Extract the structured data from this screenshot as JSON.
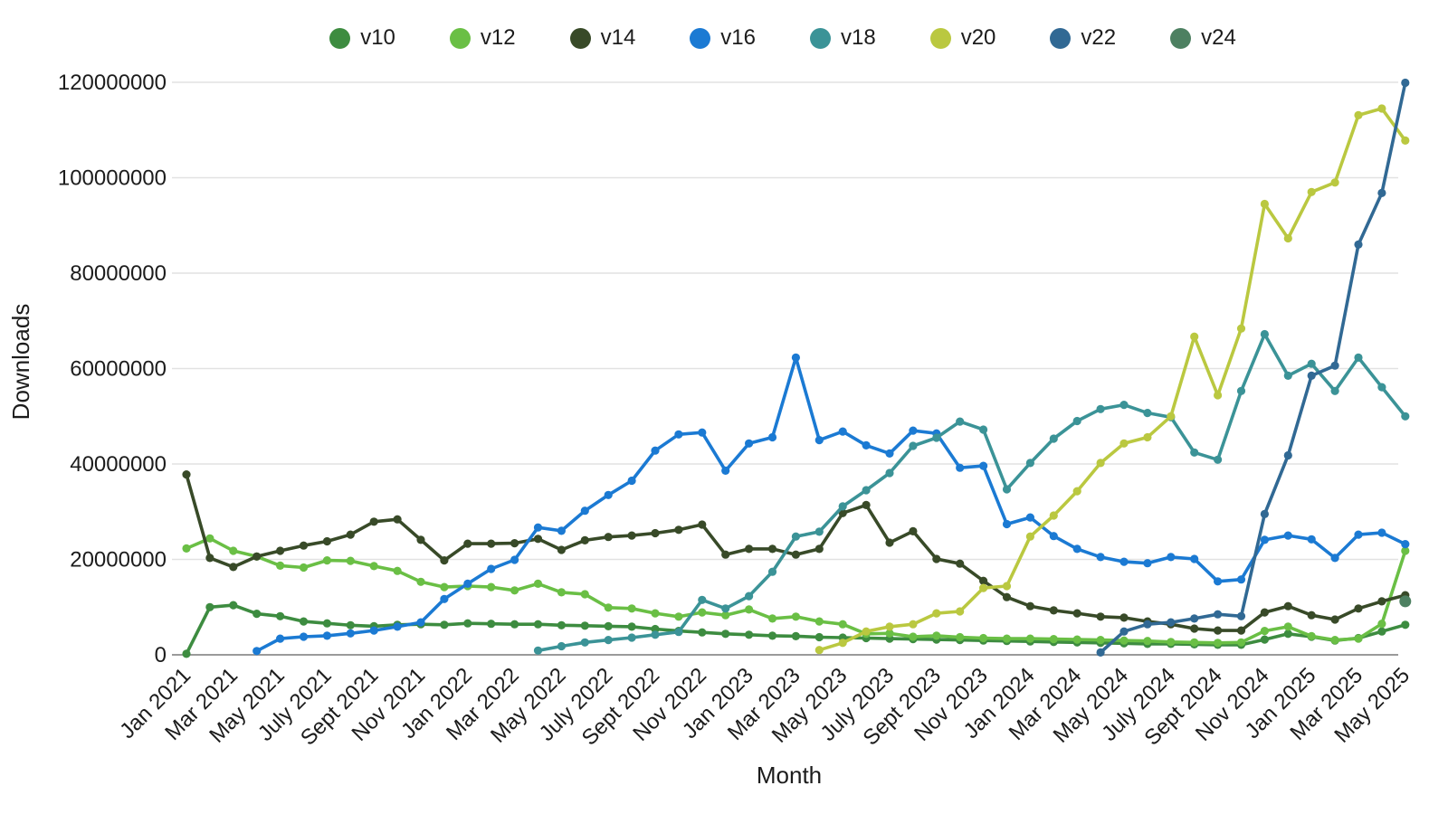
{
  "chart_data": {
    "type": "line",
    "xlabel": "Month",
    "ylabel": "Downloads",
    "legend_position": "top",
    "grid": "horizontal",
    "ylim": [
      0,
      120000000
    ],
    "y_ticks": [
      0,
      20000000,
      40000000,
      60000000,
      80000000,
      100000000,
      120000000
    ],
    "x_tick_labels_shown": [
      "Jan 2021",
      "Mar 2021",
      "May 2021",
      "July 2021",
      "Sept 2021",
      "Nov 2021",
      "Jan 2022",
      "Mar 2022",
      "May 2022",
      "July 2022",
      "Sept 2022",
      "Nov 2022",
      "Jan 2023",
      "Mar 2023",
      "May 2023",
      "July 2023",
      "Sept 2023",
      "Nov 2023",
      "Jan 2024",
      "Mar 2024",
      "May 2024",
      "July 2024",
      "Sept 2024",
      "Nov 2024",
      "Jan 2025",
      "Mar 2025",
      "May 2025"
    ],
    "x": [
      "Jan 2021",
      "Feb 2021",
      "Mar 2021",
      "Apr 2021",
      "May 2021",
      "June 2021",
      "July 2021",
      "Aug 2021",
      "Sept 2021",
      "Oct 2021",
      "Nov 2021",
      "Dec 2021",
      "Jan 2022",
      "Feb 2022",
      "Mar 2022",
      "Apr 2022",
      "May 2022",
      "June 2022",
      "July 2022",
      "Aug 2022",
      "Sept 2022",
      "Oct 2022",
      "Nov 2022",
      "Dec 2022",
      "Jan 2023",
      "Feb 2023",
      "Mar 2023",
      "Apr 2023",
      "May 2023",
      "June 2023",
      "July 2023",
      "Aug 2023",
      "Sept 2023",
      "Oct 2023",
      "Nov 2023",
      "Dec 2023",
      "Jan 2024",
      "Feb 2024",
      "Mar 2024",
      "Apr 2024",
      "May 2024",
      "June 2024",
      "July 2024",
      "Aug 2024",
      "Sept 2024",
      "Oct 2024",
      "Nov 2024",
      "Dec 2024",
      "Jan 2025",
      "Feb 2025",
      "Mar 2025",
      "Apr 2025",
      "May 2025"
    ],
    "series": [
      {
        "name": "v10",
        "color": "#3d8c40",
        "values": [
          200000,
          10000000,
          10400000,
          8600000,
          8100000,
          7000000,
          6600000,
          6200000,
          6000000,
          6300000,
          6400000,
          6300000,
          6600000,
          6500000,
          6400000,
          6400000,
          6200000,
          6100000,
          6000000,
          5900000,
          5400000,
          5000000,
          4700000,
          4400000,
          4200000,
          4000000,
          3900000,
          3700000,
          3600000,
          3500000,
          3400000,
          3300000,
          3200000,
          3100000,
          3000000,
          2900000,
          2800000,
          2700000,
          2600000,
          2500000,
          2400000,
          2300000,
          2300000,
          2200000,
          2100000,
          2100000,
          3200000,
          4400000,
          3800000,
          3000000,
          3500000,
          4900000,
          6300000
        ]
      },
      {
        "name": "v12",
        "color": "#6abf45",
        "values": [
          22300000,
          24400000,
          21800000,
          20600000,
          18700000,
          18300000,
          19800000,
          19700000,
          18600000,
          17600000,
          15300000,
          14200000,
          14400000,
          14200000,
          13500000,
          14900000,
          13100000,
          12700000,
          9900000,
          9700000,
          8700000,
          8000000,
          8900000,
          8300000,
          9500000,
          7600000,
          8000000,
          7000000,
          6400000,
          4400000,
          4500000,
          3800000,
          4000000,
          3700000,
          3500000,
          3400000,
          3400000,
          3300000,
          3200000,
          3100000,
          3000000,
          2900000,
          2700000,
          2600000,
          2500000,
          2600000,
          5000000,
          5900000,
          3900000,
          3100000,
          3400000,
          6500000,
          21800000
        ]
      },
      {
        "name": "v14",
        "color": "#384a28",
        "values": [
          37800000,
          20300000,
          18400000,
          20600000,
          21800000,
          22900000,
          23800000,
          25200000,
          27900000,
          28400000,
          24100000,
          19800000,
          23300000,
          23300000,
          23400000,
          24300000,
          22000000,
          24000000,
          24700000,
          25000000,
          25500000,
          26200000,
          27300000,
          21000000,
          22200000,
          22200000,
          21000000,
          22200000,
          29700000,
          31400000,
          23500000,
          25900000,
          20100000,
          19100000,
          15500000,
          12100000,
          10200000,
          9300000,
          8700000,
          8000000,
          7800000,
          7000000,
          6400000,
          5500000,
          5100000,
          5100000,
          8900000,
          10200000,
          8300000,
          7400000,
          9700000,
          11200000,
          12500000
        ]
      },
      {
        "name": "v16",
        "color": "#1b7ad3",
        "values": [
          null,
          null,
          null,
          800000,
          3400000,
          3800000,
          4000000,
          4500000,
          5100000,
          5900000,
          6800000,
          11700000,
          14900000,
          18000000,
          19900000,
          26700000,
          26000000,
          30200000,
          33500000,
          36500000,
          42800000,
          46200000,
          46600000,
          38600000,
          44300000,
          45600000,
          62300000,
          45000000,
          46800000,
          43900000,
          42200000,
          47000000,
          46400000,
          39200000,
          39600000,
          27400000,
          28800000,
          24900000,
          22200000,
          20500000,
          19500000,
          19200000,
          20500000,
          20100000,
          15400000,
          15800000,
          24100000,
          25000000,
          24200000,
          20300000,
          25200000,
          25600000,
          23200000
        ]
      },
      {
        "name": "v18",
        "color": "#3b9397",
        "values": [
          null,
          null,
          null,
          null,
          null,
          null,
          null,
          null,
          null,
          null,
          null,
          null,
          null,
          null,
          null,
          900000,
          1800000,
          2600000,
          3100000,
          3600000,
          4200000,
          4800000,
          11500000,
          9700000,
          12300000,
          17400000,
          24800000,
          25800000,
          31100000,
          34500000,
          38100000,
          43800000,
          45500000,
          48900000,
          47200000,
          34700000,
          40200000,
          45300000,
          49000000,
          51500000,
          52400000,
          50700000,
          49800000,
          42400000,
          40900000,
          55300000,
          67200000,
          58500000,
          61000000,
          55300000,
          62300000,
          56100000,
          50000000
        ]
      },
      {
        "name": "v20",
        "color": "#bac840",
        "values": [
          null,
          null,
          null,
          null,
          null,
          null,
          null,
          null,
          null,
          null,
          null,
          null,
          null,
          null,
          null,
          null,
          null,
          null,
          null,
          null,
          null,
          null,
          null,
          null,
          null,
          null,
          null,
          1000000,
          2500000,
          4900000,
          5900000,
          6400000,
          8700000,
          9100000,
          14000000,
          14400000,
          24800000,
          29200000,
          34300000,
          40200000,
          44300000,
          45600000,
          50000000,
          66700000,
          54400000,
          68400000,
          94500000,
          87300000,
          97000000,
          99000000,
          113100000,
          114500000,
          107800000
        ]
      },
      {
        "name": "v22",
        "color": "#316994",
        "values": [
          null,
          null,
          null,
          null,
          null,
          null,
          null,
          null,
          null,
          null,
          null,
          null,
          null,
          null,
          null,
          null,
          null,
          null,
          null,
          null,
          null,
          null,
          null,
          null,
          null,
          null,
          null,
          null,
          null,
          null,
          null,
          null,
          null,
          null,
          null,
          null,
          null,
          null,
          null,
          500000,
          4900000,
          6400000,
          6800000,
          7600000,
          8500000,
          8100000,
          29500000,
          41800000,
          58500000,
          60600000,
          86000000,
          96800000,
          119900000
        ]
      },
      {
        "name": "v24",
        "color": "#4d8061",
        "values": [
          null,
          null,
          null,
          null,
          null,
          null,
          null,
          null,
          null,
          null,
          null,
          null,
          null,
          null,
          null,
          null,
          null,
          null,
          null,
          null,
          null,
          null,
          null,
          null,
          null,
          null,
          null,
          null,
          null,
          null,
          null,
          null,
          null,
          null,
          null,
          null,
          null,
          null,
          null,
          null,
          null,
          null,
          null,
          null,
          null,
          null,
          null,
          null,
          null,
          null,
          null,
          null,
          11200000
        ]
      }
    ]
  }
}
